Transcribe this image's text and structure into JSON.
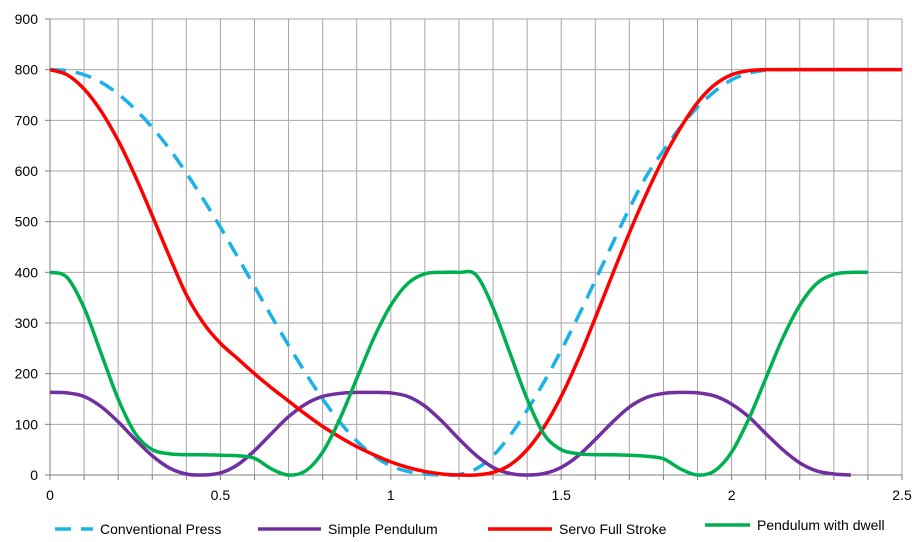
{
  "chart_data": {
    "type": "line",
    "title": "",
    "xlabel": "",
    "ylabel": "",
    "xlim": [
      0,
      2.5
    ],
    "ylim": [
      0,
      900
    ],
    "x_ticks": [
      0,
      0.5,
      1,
      1.5,
      2,
      2.5
    ],
    "x_tick_labels": [
      "0",
      "0.5",
      "1",
      "1.5",
      "2",
      "2.5"
    ],
    "y_ticks": [
      0,
      100,
      200,
      300,
      400,
      500,
      600,
      700,
      800,
      900
    ],
    "y_tick_labels": [
      "0",
      "100",
      "200",
      "300",
      "400",
      "500",
      "600",
      "700",
      "800",
      "900"
    ],
    "grid": true,
    "legend_position": "bottom",
    "series": [
      {
        "name": "Conventional Press",
        "color": "#1ab2e8",
        "dash": "dashed",
        "points": [
          [
            0,
            800
          ],
          [
            0.05,
            798
          ],
          [
            0.1,
            790
          ],
          [
            0.15,
            775
          ],
          [
            0.2,
            752
          ],
          [
            0.25,
            722
          ],
          [
            0.3,
            686
          ],
          [
            0.35,
            644
          ],
          [
            0.4,
            596
          ],
          [
            0.45,
            544
          ],
          [
            0.5,
            489
          ],
          [
            0.55,
            431
          ],
          [
            0.6,
            372
          ],
          [
            0.65,
            313
          ],
          [
            0.7,
            256
          ],
          [
            0.75,
            201
          ],
          [
            0.8,
            150
          ],
          [
            0.85,
            105
          ],
          [
            0.9,
            67
          ],
          [
            0.95,
            38
          ],
          [
            1.0,
            18
          ],
          [
            1.05,
            7
          ],
          [
            1.1,
            2
          ],
          [
            1.15,
            0
          ],
          [
            1.2,
            1
          ],
          [
            1.25,
            12
          ],
          [
            1.3,
            38
          ],
          [
            1.35,
            78
          ],
          [
            1.4,
            128
          ],
          [
            1.45,
            184
          ],
          [
            1.5,
            246
          ],
          [
            1.55,
            313
          ],
          [
            1.6,
            384
          ],
          [
            1.65,
            456
          ],
          [
            1.7,
            526
          ],
          [
            1.75,
            590
          ],
          [
            1.8,
            640
          ],
          [
            1.85,
            687
          ],
          [
            1.9,
            726
          ],
          [
            1.95,
            757
          ],
          [
            2.0,
            780
          ],
          [
            2.05,
            793
          ],
          [
            2.1,
            799
          ],
          [
            2.15,
            800
          ],
          [
            2.2,
            800
          ],
          [
            2.25,
            800
          ],
          [
            2.3,
            800
          ],
          [
            2.35,
            800
          ],
          [
            2.4,
            800
          ]
        ]
      },
      {
        "name": "Simple Pendulum",
        "color": "#7030a0",
        "dash": "solid",
        "points": [
          [
            0,
            163
          ],
          [
            0.05,
            162
          ],
          [
            0.1,
            155
          ],
          [
            0.15,
            135
          ],
          [
            0.2,
            105
          ],
          [
            0.25,
            70
          ],
          [
            0.3,
            38
          ],
          [
            0.35,
            14
          ],
          [
            0.4,
            2
          ],
          [
            0.45,
            0
          ],
          [
            0.5,
            4
          ],
          [
            0.55,
            20
          ],
          [
            0.6,
            48
          ],
          [
            0.65,
            82
          ],
          [
            0.7,
            115
          ],
          [
            0.75,
            140
          ],
          [
            0.8,
            155
          ],
          [
            0.85,
            161
          ],
          [
            0.9,
            163
          ],
          [
            0.95,
            163
          ],
          [
            1.0,
            162
          ],
          [
            1.05,
            155
          ],
          [
            1.1,
            136
          ],
          [
            1.15,
            106
          ],
          [
            1.2,
            71
          ],
          [
            1.25,
            39
          ],
          [
            1.3,
            15
          ],
          [
            1.35,
            3
          ],
          [
            1.4,
            0
          ],
          [
            1.45,
            3
          ],
          [
            1.5,
            15
          ],
          [
            1.55,
            38
          ],
          [
            1.6,
            70
          ],
          [
            1.65,
            104
          ],
          [
            1.7,
            134
          ],
          [
            1.75,
            153
          ],
          [
            1.8,
            161
          ],
          [
            1.85,
            163
          ],
          [
            1.9,
            162
          ],
          [
            1.95,
            156
          ],
          [
            2.0,
            140
          ],
          [
            2.05,
            115
          ],
          [
            2.1,
            82
          ],
          [
            2.15,
            50
          ],
          [
            2.2,
            24
          ],
          [
            2.25,
            8
          ],
          [
            2.3,
            2
          ],
          [
            2.35,
            0
          ]
        ]
      },
      {
        "name": "Servo Full Stroke",
        "color": "#ff0000",
        "dash": "solid",
        "points": [
          [
            0,
            800
          ],
          [
            0.05,
            790
          ],
          [
            0.1,
            762
          ],
          [
            0.15,
            718
          ],
          [
            0.2,
            660
          ],
          [
            0.25,
            590
          ],
          [
            0.3,
            512
          ],
          [
            0.35,
            432
          ],
          [
            0.4,
            356
          ],
          [
            0.45,
            300
          ],
          [
            0.5,
            260
          ],
          [
            0.55,
            230
          ],
          [
            0.6,
            200
          ],
          [
            0.65,
            172
          ],
          [
            0.7,
            146
          ],
          [
            0.75,
            120
          ],
          [
            0.8,
            96
          ],
          [
            0.85,
            75
          ],
          [
            0.9,
            56
          ],
          [
            0.95,
            40
          ],
          [
            1.0,
            26
          ],
          [
            1.05,
            15
          ],
          [
            1.1,
            7
          ],
          [
            1.15,
            2
          ],
          [
            1.2,
            0
          ],
          [
            1.25,
            0
          ],
          [
            1.3,
            5
          ],
          [
            1.35,
            20
          ],
          [
            1.4,
            50
          ],
          [
            1.45,
            95
          ],
          [
            1.5,
            155
          ],
          [
            1.55,
            228
          ],
          [
            1.6,
            310
          ],
          [
            1.65,
            395
          ],
          [
            1.7,
            478
          ],
          [
            1.75,
            555
          ],
          [
            1.8,
            625
          ],
          [
            1.85,
            685
          ],
          [
            1.9,
            735
          ],
          [
            1.95,
            770
          ],
          [
            2.0,
            790
          ],
          [
            2.05,
            798
          ],
          [
            2.1,
            800
          ],
          [
            2.15,
            800
          ],
          [
            2.2,
            800
          ],
          [
            2.25,
            800
          ],
          [
            2.3,
            800
          ],
          [
            2.35,
            800
          ],
          [
            2.4,
            800
          ],
          [
            2.45,
            800
          ],
          [
            2.5,
            800
          ]
        ]
      },
      {
        "name": "Pendulum with dwell",
        "color": "#00b050",
        "dash": "solid",
        "points": [
          [
            0,
            400
          ],
          [
            0.05,
            390
          ],
          [
            0.1,
            330
          ],
          [
            0.15,
            240
          ],
          [
            0.2,
            150
          ],
          [
            0.25,
            82
          ],
          [
            0.3,
            50
          ],
          [
            0.35,
            42
          ],
          [
            0.4,
            40
          ],
          [
            0.45,
            40
          ],
          [
            0.5,
            39
          ],
          [
            0.55,
            38
          ],
          [
            0.6,
            33
          ],
          [
            0.65,
            12
          ],
          [
            0.7,
            0
          ],
          [
            0.75,
            8
          ],
          [
            0.8,
            45
          ],
          [
            0.85,
            110
          ],
          [
            0.9,
            190
          ],
          [
            0.95,
            270
          ],
          [
            1.0,
            335
          ],
          [
            1.05,
            378
          ],
          [
            1.1,
            397
          ],
          [
            1.15,
            400
          ],
          [
            1.2,
            400
          ],
          [
            1.25,
            395
          ],
          [
            1.3,
            330
          ],
          [
            1.35,
            240
          ],
          [
            1.4,
            150
          ],
          [
            1.45,
            80
          ],
          [
            1.5,
            50
          ],
          [
            1.55,
            42
          ],
          [
            1.6,
            40
          ],
          [
            1.65,
            40
          ],
          [
            1.7,
            39
          ],
          [
            1.75,
            37
          ],
          [
            1.8,
            32
          ],
          [
            1.85,
            12
          ],
          [
            1.9,
            0
          ],
          [
            1.95,
            8
          ],
          [
            2.0,
            45
          ],
          [
            2.05,
            110
          ],
          [
            2.1,
            190
          ],
          [
            2.15,
            270
          ],
          [
            2.2,
            335
          ],
          [
            2.25,
            378
          ],
          [
            2.3,
            396
          ],
          [
            2.35,
            400
          ],
          [
            2.4,
            400
          ]
        ]
      }
    ]
  }
}
